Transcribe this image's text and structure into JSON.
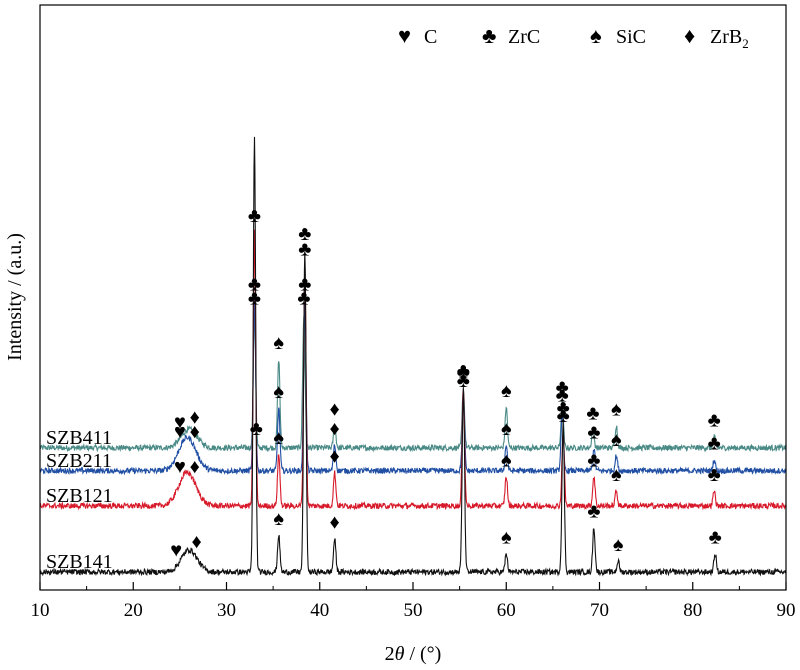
{
  "chart_data": {
    "type": "line",
    "xlabel_parts": [
      "2",
      "θ",
      " / (°)"
    ],
    "ylabel": "Intensity / (a.u.)",
    "xlim": [
      10,
      90
    ],
    "x_ticks": [
      10,
      20,
      30,
      40,
      50,
      60,
      70,
      80,
      90
    ],
    "legend_position": "top-right",
    "legend": [
      {
        "symbol": "♥",
        "label": "C"
      },
      {
        "symbol": "♣",
        "label": "ZrC"
      },
      {
        "symbol": "♠",
        "label": "SiC"
      },
      {
        "symbol": "♦",
        "label": "ZrB",
        "subscript": "2"
      }
    ],
    "phase_symbols": {
      "C": "♥",
      "ZrC": "♣",
      "SiC": "♠",
      "ZrB2": "♦"
    },
    "series": [
      {
        "name": "SZB411",
        "color": "#4a8a86",
        "baseline": 0.92,
        "noise": 0.15,
        "broad_peak": {
          "x": 26.0,
          "height": 0.5,
          "width": 1.2
        },
        "peaks": [
          {
            "x": 33.0,
            "height": 3.6,
            "phase": "ZrC"
          },
          {
            "x": 35.6,
            "height": 2.4,
            "phase": "SiC"
          },
          {
            "x": 38.3,
            "height": 3.6,
            "phase": "ZrC"
          },
          {
            "x": 41.6,
            "height": 0.6,
            "phase": "ZrB2"
          },
          {
            "x": 55.4,
            "height": 1.6,
            "phase": "ZrC"
          },
          {
            "x": 60.0,
            "height": 1.1,
            "phase": "SiC"
          },
          {
            "x": 66.0,
            "height": 1.2,
            "phase": "ZrC"
          },
          {
            "x": 69.3,
            "height": 0.5,
            "phase": "ZrC"
          },
          {
            "x": 71.8,
            "height": 0.6,
            "phase": "SiC"
          },
          {
            "x": 82.3,
            "height": 0.3,
            "phase": "ZrC"
          }
        ],
        "markers": [
          {
            "x": 25.0,
            "phase": "C"
          },
          {
            "x": 26.6,
            "phase": "ZrB2"
          },
          {
            "x": 33.0,
            "phase": "ZrC"
          },
          {
            "x": 35.6,
            "phase": "SiC"
          },
          {
            "x": 38.3,
            "phase": "ZrC"
          },
          {
            "x": 41.6,
            "phase": "ZrB2"
          },
          {
            "x": 55.4,
            "phase": "ZrC"
          },
          {
            "x": 60.0,
            "phase": "SiC"
          },
          {
            "x": 66.0,
            "phase": "ZrC"
          },
          {
            "x": 69.3,
            "phase": "ZrC"
          },
          {
            "x": 71.8,
            "phase": "SiC"
          },
          {
            "x": 82.3,
            "phase": "ZrC"
          }
        ]
      },
      {
        "name": "SZB211",
        "color": "#1f4ea3",
        "baseline": 0.75,
        "noise": 0.15,
        "broad_peak": {
          "x": 25.8,
          "height": 0.9,
          "width": 1.3
        },
        "peaks": [
          {
            "x": 33.0,
            "height": 4.6,
            "phase": "ZrC"
          },
          {
            "x": 35.6,
            "height": 1.7,
            "phase": "SiC"
          },
          {
            "x": 38.4,
            "height": 4.6,
            "phase": "ZrC"
          },
          {
            "x": 41.6,
            "height": 0.7,
            "phase": "ZrB2"
          },
          {
            "x": 55.4,
            "height": 2.0,
            "phase": "ZrC"
          },
          {
            "x": 60.0,
            "height": 0.7,
            "phase": "SiC"
          },
          {
            "x": 66.0,
            "height": 1.6,
            "phase": "ZrC"
          },
          {
            "x": 69.4,
            "height": 0.6,
            "phase": "ZrC"
          },
          {
            "x": 71.8,
            "height": 0.4,
            "phase": "SiC"
          },
          {
            "x": 82.3,
            "height": 0.3,
            "phase": "ZrC"
          }
        ],
        "markers": [
          {
            "x": 25.0,
            "phase": "C"
          },
          {
            "x": 26.6,
            "phase": "ZrB2"
          },
          {
            "x": 33.0,
            "phase": "ZrC"
          },
          {
            "x": 35.6,
            "phase": "SiC"
          },
          {
            "x": 38.4,
            "phase": "ZrC"
          },
          {
            "x": 41.6,
            "phase": "ZrB2"
          },
          {
            "x": 55.4,
            "phase": "ZrC"
          },
          {
            "x": 60.0,
            "phase": "SiC"
          },
          {
            "x": 66.0,
            "phase": "ZrC"
          },
          {
            "x": 69.4,
            "phase": "ZrC"
          },
          {
            "x": 71.8,
            "phase": "SiC"
          },
          {
            "x": 82.3,
            "phase": "ZrC"
          }
        ]
      },
      {
        "name": "SZB121",
        "color": "#d7192a",
        "baseline": 0.49,
        "noise": 0.15,
        "broad_peak": {
          "x": 25.8,
          "height": 0.9,
          "width": 1.3
        },
        "peaks": [
          {
            "x": 33.0,
            "height": 7.4,
            "phase": "ZrC"
          },
          {
            "x": 35.6,
            "height": 1.4,
            "phase": "SiC"
          },
          {
            "x": 38.4,
            "height": 6.5,
            "phase": "ZrC"
          },
          {
            "x": 41.6,
            "height": 0.9,
            "phase": "ZrB2"
          },
          {
            "x": 55.4,
            "height": 3.2,
            "phase": "ZrC"
          },
          {
            "x": 60.0,
            "height": 0.8,
            "phase": "SiC"
          },
          {
            "x": 66.1,
            "height": 2.0,
            "phase": "ZrC"
          },
          {
            "x": 69.4,
            "height": 0.8,
            "phase": "ZrC"
          },
          {
            "x": 71.8,
            "height": 0.4,
            "phase": "SiC"
          },
          {
            "x": 82.3,
            "height": 0.4,
            "phase": "ZrC"
          }
        ],
        "markers": [
          {
            "x": 25.0,
            "phase": "C"
          },
          {
            "x": 26.6,
            "phase": "ZrB2"
          },
          {
            "x": 33.0,
            "phase": "ZrC"
          },
          {
            "x": 35.6,
            "phase": "SiC"
          },
          {
            "x": 38.4,
            "phase": "ZrC"
          },
          {
            "x": 41.6,
            "phase": "ZrB2"
          },
          {
            "x": 55.4,
            "phase": "ZrC"
          },
          {
            "x": 60.0,
            "phase": "SiC"
          },
          {
            "x": 66.1,
            "phase": "ZrC"
          },
          {
            "x": 69.4,
            "phase": "ZrC"
          },
          {
            "x": 71.8,
            "phase": "SiC"
          },
          {
            "x": 82.3,
            "phase": "ZrC"
          }
        ]
      },
      {
        "name": "SZB141",
        "color": "#111111",
        "baseline": 0.0,
        "noise": 0.15,
        "broad_peak": {
          "x": 26.0,
          "height": 0.6,
          "width": 1.2
        },
        "peaks": [
          {
            "x": 33.0,
            "height": 11.8,
            "phase": "ZrC"
          },
          {
            "x": 35.6,
            "height": 1.0,
            "phase": "SiC"
          },
          {
            "x": 38.4,
            "height": 8.7,
            "phase": "ZrC"
          },
          {
            "x": 41.6,
            "height": 0.9,
            "phase": "ZrB2"
          },
          {
            "x": 55.4,
            "height": 5.0,
            "phase": "ZrC"
          },
          {
            "x": 60.0,
            "height": 0.5,
            "phase": "SiC"
          },
          {
            "x": 66.1,
            "height": 4.0,
            "phase": "ZrC"
          },
          {
            "x": 69.4,
            "height": 1.2,
            "phase": "ZrC"
          },
          {
            "x": 72.0,
            "height": 0.3,
            "phase": "SiC"
          },
          {
            "x": 82.4,
            "height": 0.5,
            "phase": "ZrC"
          }
        ],
        "markers": [
          {
            "x": 24.6,
            "phase": "C"
          },
          {
            "x": 26.8,
            "phase": "ZrB2"
          },
          {
            "x": 33.2,
            "phase": "ZrC"
          },
          {
            "x": 35.6,
            "phase": "SiC"
          },
          {
            "x": 38.4,
            "phase": "ZrC"
          },
          {
            "x": 41.6,
            "phase": "ZrB2"
          },
          {
            "x": 55.4,
            "phase": "ZrC"
          },
          {
            "x": 60.0,
            "phase": "SiC"
          },
          {
            "x": 66.1,
            "phase": "ZrC"
          },
          {
            "x": 69.4,
            "phase": "ZrC"
          },
          {
            "x": 72.0,
            "phase": "SiC"
          },
          {
            "x": 82.4,
            "phase": "ZrC"
          }
        ]
      }
    ]
  }
}
